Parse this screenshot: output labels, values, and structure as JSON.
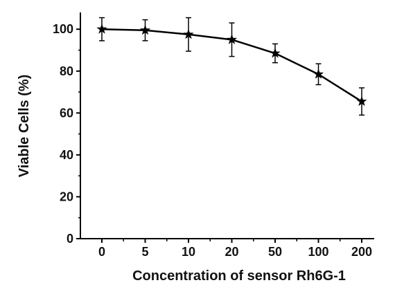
{
  "chart_data": {
    "type": "line",
    "xlabel": "Concentration of sensor Rh6G-1",
    "ylabel": "Viable Cells (%)",
    "categories": [
      "0",
      "5",
      "10",
      "20",
      "50",
      "100",
      "200"
    ],
    "series": [
      {
        "values": [
          100,
          99.5,
          97.5,
          95,
          88.5,
          78.5,
          65.5
        ],
        "errors": [
          5.5,
          5,
          8,
          8,
          4.5,
          5,
          6.5
        ],
        "marker": "star",
        "color": "#000000"
      }
    ],
    "ylim": [
      0,
      108
    ],
    "yticks": [
      0,
      20,
      40,
      60,
      80,
      100
    ],
    "grid": false,
    "legend": "none"
  }
}
